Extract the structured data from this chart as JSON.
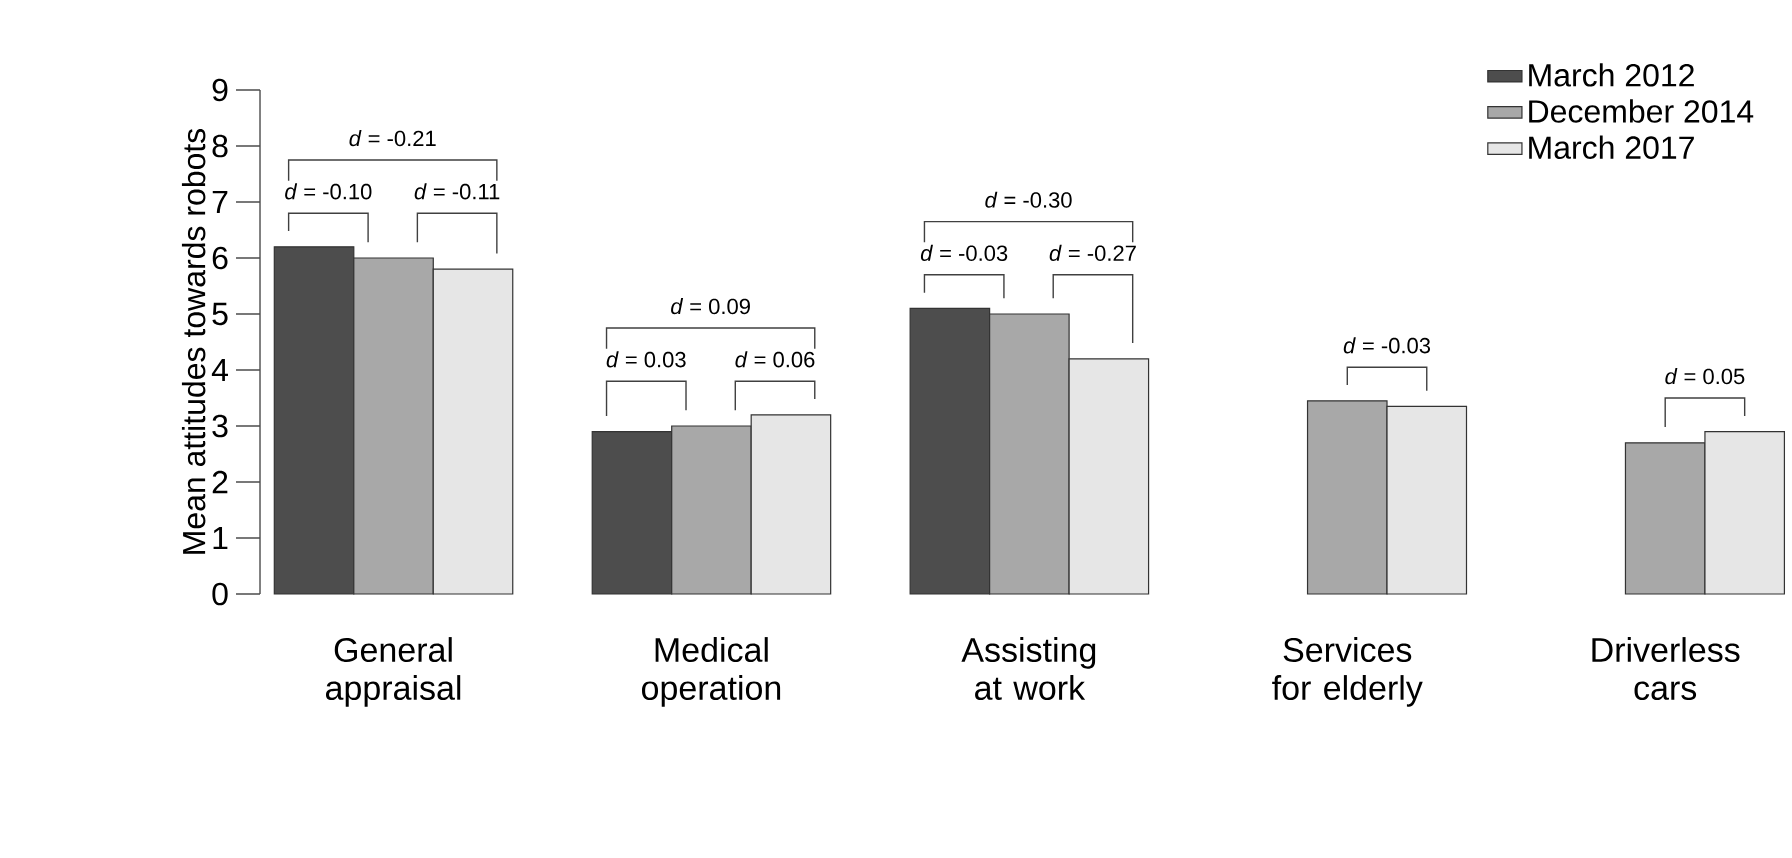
{
  "chart_data": {
    "type": "bar",
    "categories": [
      "General appraisal",
      "Medical operation",
      "Assisting at work",
      "Services for elderly",
      "Driverless cars"
    ],
    "series": [
      {
        "name": "March 2012",
        "color": "#4d4d4d",
        "values": [
          6.2,
          2.9,
          5.1,
          null,
          null
        ]
      },
      {
        "name": "December 2014",
        "color": "#a8a8a8",
        "values": [
          6.0,
          3.0,
          5.0,
          3.45,
          2.7
        ]
      },
      {
        "name": "March 2017",
        "color": "#e6e6e6",
        "values": [
          5.8,
          3.2,
          4.2,
          3.35,
          2.9
        ]
      }
    ],
    "ylabel": "Mean attitudes towards robots",
    "ylim": [
      0,
      9
    ],
    "yticks": [
      0,
      1,
      2,
      3,
      4,
      5,
      6,
      7,
      8,
      9
    ],
    "legend": "top right",
    "annotations": [
      "*d* = -0.21",
      "*d* = -0.10",
      "*d* = -0.11",
      "*d* = 0.09",
      "*d* = 0.03",
      "*d* = 0.06",
      "*d* = -0.30",
      "*d* = -0.03",
      "*d* = -0.27",
      "*d* = -0.03",
      "*d* = 0.05"
    ]
  }
}
